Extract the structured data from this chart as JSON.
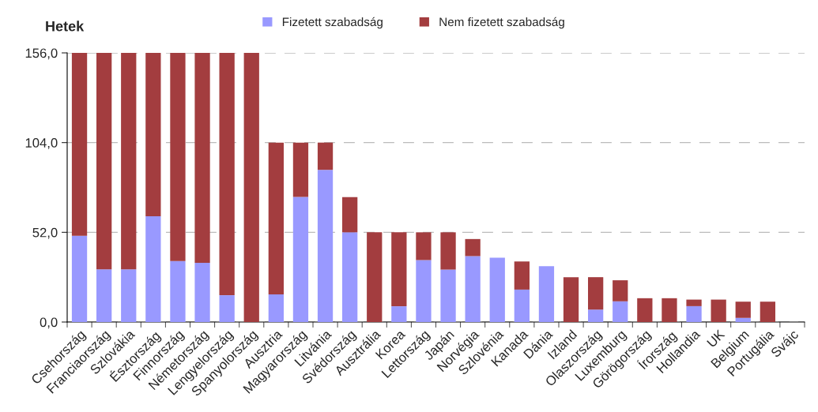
{
  "chart_data": {
    "type": "bar",
    "stacked": true,
    "ylabel": "Hetek",
    "categories": [
      "Csehország",
      "Franciaország",
      "Szlovákia",
      "Észtország",
      "Finnország",
      "Németország",
      "Lengyelország",
      "Spanyolország",
      "Ausztria",
      "Magyarország",
      "Litvánia",
      "Svédország",
      "Ausztrália",
      "Korea",
      "Lettország",
      "Japán",
      "Norvégia",
      "Szlovénia",
      "Kanada",
      "Dánia",
      "Izland",
      "Olaszország",
      "Luxemburg",
      "Görögország",
      "Írország",
      "Hollandia",
      "UK",
      "Belgium",
      "Portugália",
      "Svájc"
    ],
    "series": [
      {
        "name": "Fizetett szabadság",
        "color": "#9999ff",
        "values": [
          50,
          30.5,
          30.5,
          61.3,
          35.3,
          34.3,
          15.5,
          0,
          16,
          72.5,
          88.2,
          52,
          0,
          9.1,
          35.9,
          30.4,
          38.2,
          37.3,
          18.8,
          32.4,
          0,
          7.2,
          12,
          0,
          0,
          9.2,
          0,
          2.4,
          0,
          null
        ]
      },
      {
        "name": "Nem fizetett szabadság",
        "color": "#a33d3f",
        "values": [
          106,
          125.5,
          125.5,
          94.7,
          120.7,
          121.7,
          140.5,
          156,
          88,
          31.5,
          15.8,
          20.4,
          52,
          42.9,
          16.1,
          21.6,
          9.9,
          0,
          16.3,
          0,
          26,
          18.8,
          12.2,
          13.8,
          13.8,
          3.8,
          13,
          9.4,
          11.8,
          null
        ]
      }
    ],
    "ylim": [
      0,
      156
    ],
    "yticks": [
      {
        "value": 0,
        "label": "0,0"
      },
      {
        "value": 52,
        "label": "52,0"
      },
      {
        "value": 104,
        "label": "104,0"
      },
      {
        "value": 156,
        "label": "156,0"
      }
    ],
    "grid": "y",
    "legend": "top"
  }
}
